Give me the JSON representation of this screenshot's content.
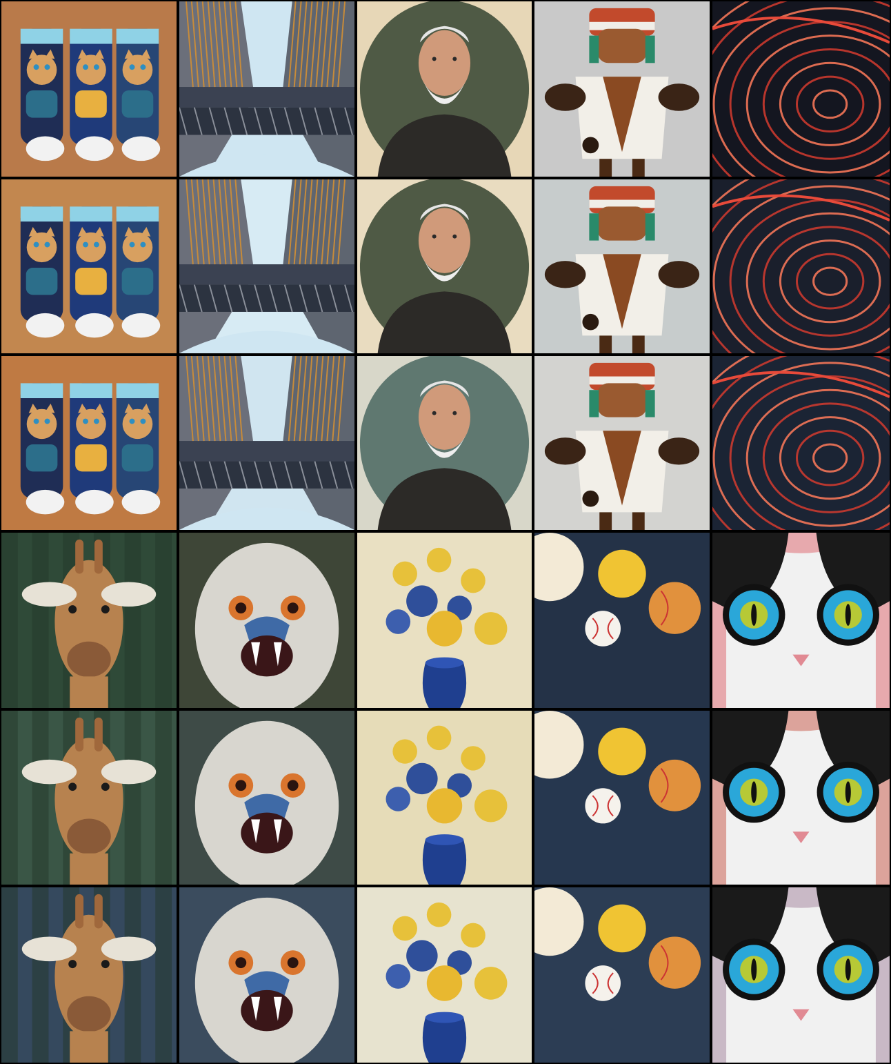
{
  "grid": {
    "rows": 6,
    "cols": 5,
    "border_color": "#000000",
    "tiles": [
      {
        "subject": "cat-socks",
        "bg": "#b97a4a"
      },
      {
        "subject": "eiffel-tower",
        "bg": "#cfe6f2"
      },
      {
        "subject": "old-man-portrait",
        "bg": "#e7d7b7"
      },
      {
        "subject": "kachina-doll",
        "bg": "#c9c9c9"
      },
      {
        "subject": "red-swirl",
        "bg": "#141620"
      },
      {
        "subject": "cat-socks",
        "bg": "#c2874f"
      },
      {
        "subject": "eiffel-tower",
        "bg": "#d7ebf4"
      },
      {
        "subject": "old-man-portrait",
        "bg": "#e9dcc0"
      },
      {
        "subject": "kachina-doll",
        "bg": "#c7cccc"
      },
      {
        "subject": "red-swirl",
        "bg": "#1a1f2c"
      },
      {
        "subject": "cat-socks",
        "bg": "#bf7a43"
      },
      {
        "subject": "eiffel-tower",
        "bg": "#d0e5f0"
      },
      {
        "subject": "old-man-portrait",
        "bg": "#d8d7c9"
      },
      {
        "subject": "kachina-doll",
        "bg": "#d3d3d0"
      },
      {
        "subject": "red-swirl",
        "bg": "#1b2434"
      },
      {
        "subject": "giraffe",
        "bg": "#2f4a38"
      },
      {
        "subject": "ostrich",
        "bg": "#3e4637"
      },
      {
        "subject": "flower-vase",
        "bg": "#e9e0c2"
      },
      {
        "subject": "baseballs",
        "bg": "#243247"
      },
      {
        "subject": "cat-goggles",
        "bg": "#e7a9ad"
      },
      {
        "subject": "giraffe",
        "bg": "#3a5646"
      },
      {
        "subject": "ostrich",
        "bg": "#3e4b47"
      },
      {
        "subject": "flower-vase",
        "bg": "#e6dcb8"
      },
      {
        "subject": "baseballs",
        "bg": "#26374f"
      },
      {
        "subject": "cat-goggles",
        "bg": "#dca39b"
      },
      {
        "subject": "giraffe",
        "bg": "#35495e"
      },
      {
        "subject": "ostrich",
        "bg": "#3b4c5e"
      },
      {
        "subject": "flower-vase",
        "bg": "#e7e3cf"
      },
      {
        "subject": "baseballs",
        "bg": "#2c3d54"
      },
      {
        "subject": "cat-goggles",
        "bg": "#c9b9c6"
      }
    ]
  }
}
